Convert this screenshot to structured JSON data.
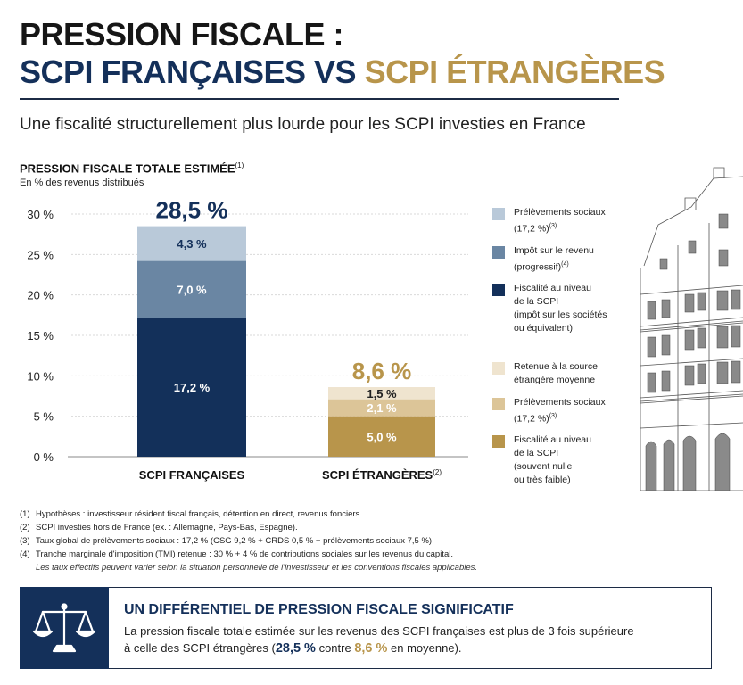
{
  "title": {
    "line1": "PRESSION FISCALE :",
    "line2_part1": "SCPI FRANÇAISES VS",
    "line2_part2": "SCPI ÉTRANGÈRES"
  },
  "subtitle": "Une fiscalité structurellement plus lourde pour les SCPI investies en France",
  "chart_heading": "PRESSION FISCALE TOTALE ESTIMÉE",
  "chart_heading_note": "(1)",
  "chart_unit": "En % des revenus distribués",
  "chart_data": {
    "type": "bar",
    "stacked": true,
    "title": "PRESSION FISCALE TOTALE ESTIMÉE",
    "ylabel": "En % des revenus distribués",
    "ylim": [
      0,
      30
    ],
    "yticks": [
      0,
      5,
      10,
      15,
      20,
      25,
      30
    ],
    "ytick_labels": [
      "0 %",
      "5 %",
      "10 %",
      "15 %",
      "20 %",
      "25 %",
      "30 %"
    ],
    "grid": true,
    "legend_placement": "right",
    "bars": [
      {
        "category": "SCPI FRANÇAISES",
        "category_note": "",
        "total": 28.5,
        "total_label": "28,5 %",
        "total_color": "#14305a",
        "segments": [
          {
            "name": "Fiscalité au niveau de la SCPI (impôt sur les sociétés ou équivalent)",
            "value": 17.2,
            "label": "17,2 %",
            "color": "#13305a",
            "text_color": "#ffffff"
          },
          {
            "name": "Impôt sur le revenu (progressif)",
            "value": 7.0,
            "label": "7,0 %",
            "color": "#6a86a3",
            "text_color": "#ffffff"
          },
          {
            "name": "Prélèvements sociaux (17,2 %)",
            "value": 4.3,
            "label": "4,3 %",
            "color": "#b9c9d9",
            "text_color": "#14305a"
          }
        ]
      },
      {
        "category": "SCPI ÉTRANGÈRES",
        "category_note": "(2)",
        "total": 8.6,
        "total_label": "8,6 %",
        "total_color": "#b8954b",
        "segments": [
          {
            "name": "Fiscalité au niveau de la SCPI (souvent nulle ou très faible)",
            "value": 5.0,
            "label": "5,0 %",
            "color": "#b8954b",
            "text_color": "#ffffff"
          },
          {
            "name": "Prélèvements sociaux (17,2 %)",
            "value": 2.1,
            "label": "2,1 %",
            "color": "#dcc598",
            "text_color": "#ffffff"
          },
          {
            "name": "Retenue à la source étrangère moyenne",
            "value": 1.5,
            "label": "1,5 %",
            "color": "#efe4cf",
            "text_color": "#222222"
          }
        ]
      }
    ]
  },
  "legend": [
    {
      "text": "Prélèvements sociaux\n(17,2 %)",
      "note": "(3)",
      "color": "#b9c9d9"
    },
    {
      "text": "Impôt sur le revenu\n(progressif)",
      "note": "(4)",
      "color": "#6a86a3"
    },
    {
      "text": "Fiscalité au niveau\nde la SCPI\n(impôt sur les sociétés\nou équivalent)",
      "note": "",
      "color": "#13305a"
    },
    {
      "text": "Retenue à la source\nétrangère moyenne",
      "note": "",
      "color": "#efe4cf"
    },
    {
      "text": "Prélèvements sociaux\n(17,2 %)",
      "note": "(3)",
      "color": "#dcc598"
    },
    {
      "text": "Fiscalité au niveau\nde la SCPI\n(souvent nulle\nou très faible)",
      "note": "",
      "color": "#b8954b"
    }
  ],
  "footnotes": [
    {
      "num": "(1)",
      "text": "Hypothèses : investisseur résident fiscal français, détention en direct, revenus fonciers."
    },
    {
      "num": "(2)",
      "text": "SCPI investies hors de France (ex. : Allemagne, Pays-Bas, Espagne)."
    },
    {
      "num": "(3)",
      "text": "Taux global de prélèvements sociaux : 17,2 % (CSG 9,2 % + CRDS 0,5 % + prélèvements sociaux 7,5 %)."
    },
    {
      "num": "(4)",
      "text": "Tranche marginale d'imposition (TMI) retenue : 30 % + 4 % de contributions sociales sur les revenus du capital."
    }
  ],
  "footnote_italic": "Les taux effectifs peuvent varier selon la situation personnelle de l'investisseur et les conventions fiscales applicables.",
  "callout": {
    "title": "UN DIFFÉRENTIEL DE PRESSION FISCALE SIGNIFICATIF",
    "line1": "La pression fiscale totale estimée sur les revenus des SCPI françaises est plus de 3 fois supérieure",
    "line2_a": "à celle des SCPI étrangères (",
    "line2_v1": "28,5 %",
    "line2_b": " contre ",
    "line2_v2": "8,6 %",
    "line2_c": " en moyenne).",
    "icon": "scales-of-justice-icon"
  },
  "colors": {
    "navy": "#14305a",
    "gold": "#b8954b",
    "grid": "#d9d9d9"
  }
}
